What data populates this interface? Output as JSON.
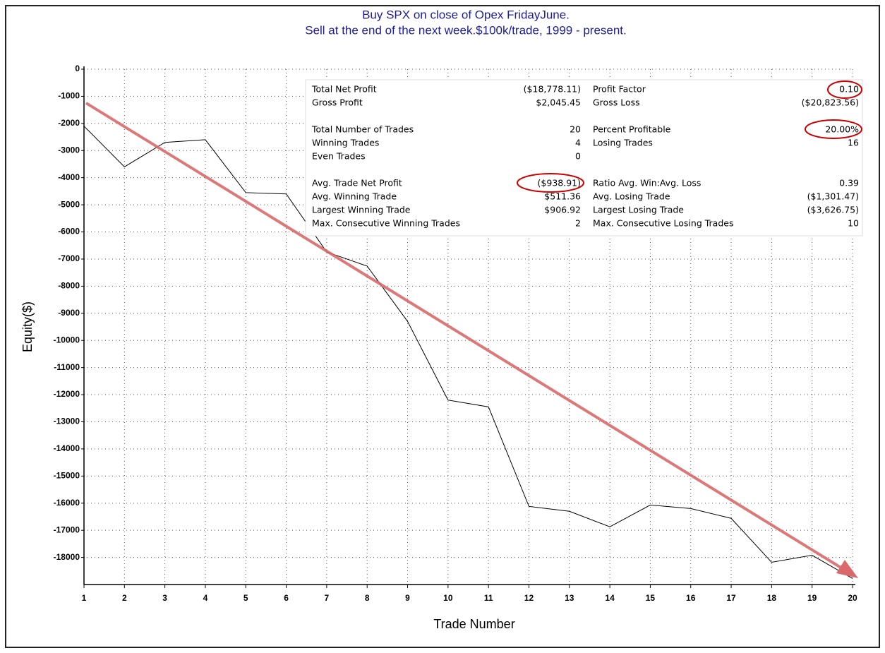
{
  "chart_data": {
    "type": "line",
    "title": [
      "Buy SPX on close of Opex FridayJune.",
      "Sell at the end of the next week.$100k/trade, 1999 - present."
    ],
    "x_label": "Trade Number",
    "y_label": "Equity($)",
    "x": [
      1,
      2,
      3,
      4,
      5,
      6,
      7,
      8,
      9,
      10,
      11,
      12,
      13,
      14,
      15,
      16,
      17,
      18,
      19,
      20
    ],
    "series": [
      {
        "color": "#000000",
        "values": [
          -2100,
          -3600,
          -2700,
          -2600,
          -4550,
          -4600,
          -6740,
          -7260,
          -9300,
          -12200,
          -12450,
          -16120,
          -16300,
          -16870,
          -16070,
          -16200,
          -16560,
          -18180,
          -17920,
          -18778.11
        ]
      }
    ],
    "xlim": [
      1,
      20
    ],
    "xticks": [
      1,
      2,
      3,
      4,
      5,
      6,
      7,
      8,
      9,
      10,
      11,
      12,
      13,
      14,
      15,
      16,
      17,
      18,
      19,
      20
    ],
    "ylim": [
      -19000,
      0
    ],
    "yticks": [
      0,
      -1000,
      -2000,
      -3000,
      -4000,
      -5000,
      -6000,
      -7000,
      -8000,
      -9000,
      -10000,
      -11000,
      -12000,
      -13000,
      -14000,
      -15000,
      -16000,
      -17000,
      -18000
    ],
    "grid": true,
    "negative_color": "#ff3b3b",
    "stats": [
      [
        [
          "Total Net Profit",
          "($18,778.11)",
          "Profit Factor",
          "0.10"
        ],
        [
          "Gross Profit",
          "$2,045.45",
          "Gross Loss",
          "($20,823.56)"
        ]
      ],
      [
        [
          "Total Number of Trades",
          "20",
          "Percent Profitable",
          "20.00%"
        ],
        [
          "Winning Trades",
          "4",
          "Losing Trades",
          "16"
        ],
        [
          "Even Trades",
          "0"
        ]
      ],
      [
        [
          "Avg. Trade Net Profit",
          "($938.91)",
          "Ratio Avg. Win:Avg. Loss",
          "0.39"
        ],
        [
          "Avg. Winning Trade",
          "$511.36",
          "Avg. Losing Trade",
          "($1,301.47)"
        ],
        [
          "Largest Winning Trade",
          "$906.92",
          "Largest Losing Trade",
          "($3,626.75)"
        ],
        [
          "Max. Consecutive Winning Trades",
          "2",
          "Max. Consecutive Losing Trades",
          "10"
        ]
      ]
    ]
  }
}
